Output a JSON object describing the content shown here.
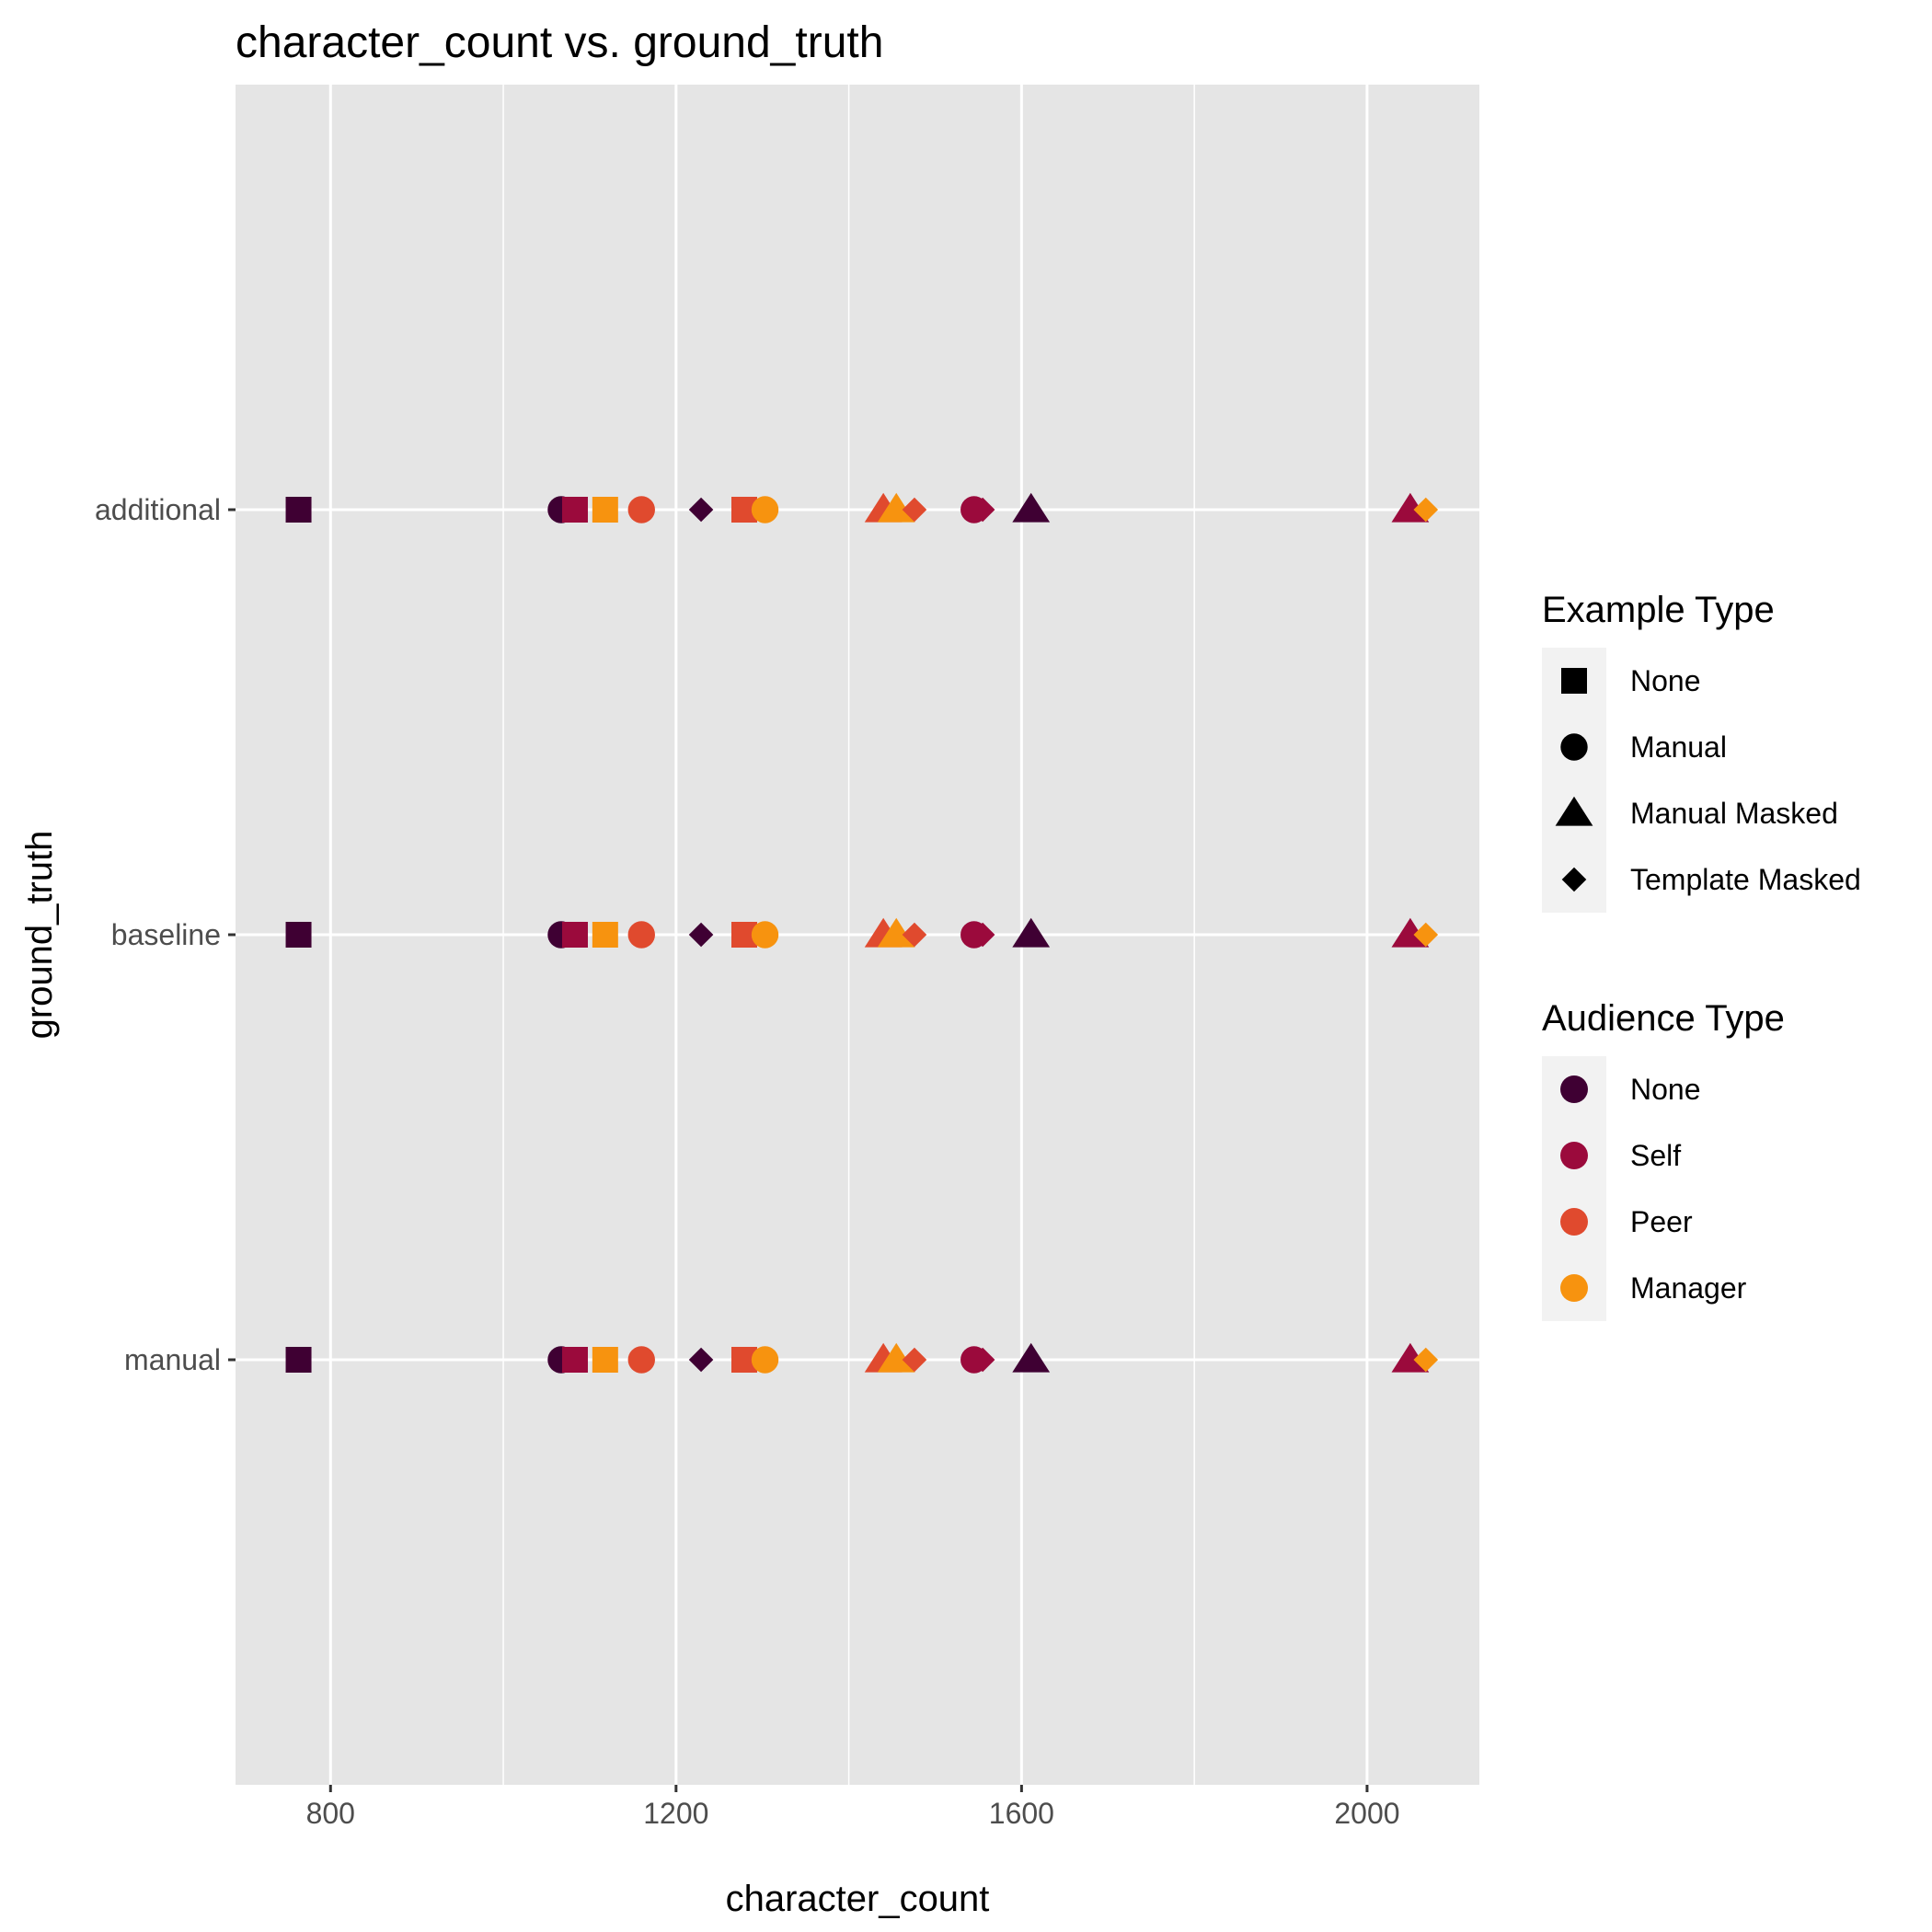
{
  "chart_data": {
    "type": "scatter",
    "title": "character_count vs. ground_truth",
    "xlabel": "character_count",
    "ylabel": "ground_truth",
    "xlim": [
      690,
      2130
    ],
    "x_ticks": [
      800,
      1200,
      1600,
      2000
    ],
    "y_categories": [
      "manual",
      "baseline",
      "additional"
    ],
    "grid": true,
    "legend_position": "right",
    "shape_legend": {
      "title": "Example Type",
      "entries": [
        {
          "label": "None",
          "shape": "square"
        },
        {
          "label": "Manual",
          "shape": "circle"
        },
        {
          "label": "Manual Masked",
          "shape": "triangle"
        },
        {
          "label": "Template Masked",
          "shape": "diamond"
        }
      ]
    },
    "color_legend": {
      "title": "Audience Type",
      "entries": [
        {
          "label": "None",
          "color": "#3f0033"
        },
        {
          "label": "Self",
          "color": "#9b0a3c"
        },
        {
          "label": "Peer",
          "color": "#e04a2e"
        },
        {
          "label": "Manager",
          "color": "#f7930f"
        }
      ]
    },
    "points": {
      "additional": [
        {
          "x": 763,
          "shape": "square",
          "audience": "None"
        },
        {
          "x": 1067,
          "shape": "circle",
          "audience": "None"
        },
        {
          "x": 1083,
          "shape": "square",
          "audience": "Self"
        },
        {
          "x": 1118,
          "shape": "square",
          "audience": "Manager"
        },
        {
          "x": 1160,
          "shape": "circle",
          "audience": "Peer"
        },
        {
          "x": 1229,
          "shape": "diamond",
          "audience": "None"
        },
        {
          "x": 1279,
          "shape": "square",
          "audience": "Peer"
        },
        {
          "x": 1303,
          "shape": "circle",
          "audience": "Manager"
        },
        {
          "x": 1440,
          "shape": "triangle",
          "audience": "Peer"
        },
        {
          "x": 1455,
          "shape": "triangle",
          "audience": "Manager"
        },
        {
          "x": 1476,
          "shape": "diamond",
          "audience": "Peer"
        },
        {
          "x": 1545,
          "shape": "circle",
          "audience": "Self"
        },
        {
          "x": 1555,
          "shape": "diamond",
          "audience": "Self"
        },
        {
          "x": 1611,
          "shape": "triangle",
          "audience": "None"
        },
        {
          "x": 2050,
          "shape": "triangle",
          "audience": "Self"
        },
        {
          "x": 2068,
          "shape": "diamond",
          "audience": "Manager"
        }
      ],
      "baseline": [
        {
          "x": 763,
          "shape": "square",
          "audience": "None"
        },
        {
          "x": 1067,
          "shape": "circle",
          "audience": "None"
        },
        {
          "x": 1083,
          "shape": "square",
          "audience": "Self"
        },
        {
          "x": 1118,
          "shape": "square",
          "audience": "Manager"
        },
        {
          "x": 1160,
          "shape": "circle",
          "audience": "Peer"
        },
        {
          "x": 1229,
          "shape": "diamond",
          "audience": "None"
        },
        {
          "x": 1279,
          "shape": "square",
          "audience": "Peer"
        },
        {
          "x": 1303,
          "shape": "circle",
          "audience": "Manager"
        },
        {
          "x": 1440,
          "shape": "triangle",
          "audience": "Peer"
        },
        {
          "x": 1455,
          "shape": "triangle",
          "audience": "Manager"
        },
        {
          "x": 1476,
          "shape": "diamond",
          "audience": "Peer"
        },
        {
          "x": 1545,
          "shape": "circle",
          "audience": "Self"
        },
        {
          "x": 1555,
          "shape": "diamond",
          "audience": "Self"
        },
        {
          "x": 1611,
          "shape": "triangle",
          "audience": "None"
        },
        {
          "x": 2050,
          "shape": "triangle",
          "audience": "Self"
        },
        {
          "x": 2068,
          "shape": "diamond",
          "audience": "Manager"
        }
      ],
      "manual": [
        {
          "x": 763,
          "shape": "square",
          "audience": "None"
        },
        {
          "x": 1067,
          "shape": "circle",
          "audience": "None"
        },
        {
          "x": 1083,
          "shape": "square",
          "audience": "Self"
        },
        {
          "x": 1118,
          "shape": "square",
          "audience": "Manager"
        },
        {
          "x": 1160,
          "shape": "circle",
          "audience": "Peer"
        },
        {
          "x": 1229,
          "shape": "diamond",
          "audience": "None"
        },
        {
          "x": 1279,
          "shape": "square",
          "audience": "Peer"
        },
        {
          "x": 1303,
          "shape": "circle",
          "audience": "Manager"
        },
        {
          "x": 1440,
          "shape": "triangle",
          "audience": "Peer"
        },
        {
          "x": 1455,
          "shape": "triangle",
          "audience": "Manager"
        },
        {
          "x": 1476,
          "shape": "diamond",
          "audience": "Peer"
        },
        {
          "x": 1545,
          "shape": "circle",
          "audience": "Self"
        },
        {
          "x": 1555,
          "shape": "diamond",
          "audience": "Self"
        },
        {
          "x": 1611,
          "shape": "triangle",
          "audience": "None"
        },
        {
          "x": 2050,
          "shape": "triangle",
          "audience": "Self"
        },
        {
          "x": 2068,
          "shape": "diamond",
          "audience": "Manager"
        }
      ]
    }
  },
  "colors": {
    "panel_background": "#e5e5e5",
    "grid": "#ffffff",
    "legend_key_background": "#f2f2f2"
  }
}
